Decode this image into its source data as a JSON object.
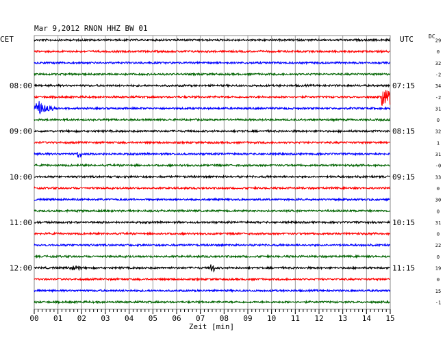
{
  "chart_data": {
    "type": "line",
    "title": "Mar 9,2012   RNON HHZ BW 01",
    "left_label": "CET",
    "right_label": "UTC",
    "dc_label": "DC",
    "xlabel": "Zeit [min]",
    "xlim": [
      0,
      15
    ],
    "x_ticks": [
      "00",
      "01",
      "02",
      "03",
      "04",
      "05",
      "06",
      "07",
      "08",
      "09",
      "10",
      "11",
      "12",
      "13",
      "14",
      "15"
    ],
    "grid": true,
    "colors": [
      "#000000",
      "#ff0000",
      "#0000ff",
      "#006400"
    ],
    "traces": [
      {
        "dc": "29",
        "left": "",
        "right": ""
      },
      {
        "dc": "0",
        "left": "",
        "right": ""
      },
      {
        "dc": "32",
        "left": "",
        "right": ""
      },
      {
        "dc": "-2",
        "left": "",
        "right": ""
      },
      {
        "dc": "34",
        "left": "08:00",
        "right": "07:15"
      },
      {
        "dc": "-2",
        "left": "",
        "right": ""
      },
      {
        "dc": "31",
        "left": "",
        "right": ""
      },
      {
        "dc": "0",
        "left": "",
        "right": ""
      },
      {
        "dc": "32",
        "left": "09:00",
        "right": "08:15"
      },
      {
        "dc": "1",
        "left": "",
        "right": ""
      },
      {
        "dc": "31",
        "left": "",
        "right": ""
      },
      {
        "dc": "-0",
        "left": "",
        "right": ""
      },
      {
        "dc": "33",
        "left": "10:00",
        "right": "09:15"
      },
      {
        "dc": "0",
        "left": "",
        "right": ""
      },
      {
        "dc": "30",
        "left": "",
        "right": ""
      },
      {
        "dc": "0",
        "left": "",
        "right": ""
      },
      {
        "dc": "31",
        "left": "11:00",
        "right": "10:15"
      },
      {
        "dc": "0",
        "left": "",
        "right": ""
      },
      {
        "dc": "22",
        "left": "",
        "right": ""
      },
      {
        "dc": "0",
        "left": "",
        "right": ""
      },
      {
        "dc": "19",
        "left": "12:00",
        "right": "11:15"
      },
      {
        "dc": "0",
        "left": "",
        "right": ""
      },
      {
        "dc": "15",
        "left": "",
        "right": ""
      },
      {
        "dc": "-1",
        "left": "",
        "right": ""
      }
    ],
    "events": [
      {
        "trace": 5,
        "start_min": 14.6,
        "end_min": 15.0,
        "amplitude": 2.6
      },
      {
        "trace": 6,
        "start_min": 0.0,
        "end_min": 1.6,
        "amplitude": 3.0,
        "decay": true
      },
      {
        "trace": 10,
        "start_min": 1.8,
        "end_min": 2.0,
        "amplitude": 1.2
      },
      {
        "trace": 20,
        "start_min": 1.5,
        "end_min": 2.0,
        "amplitude": 0.8
      },
      {
        "trace": 20,
        "start_min": 7.4,
        "end_min": 7.6,
        "amplitude": 1.0
      }
    ]
  }
}
